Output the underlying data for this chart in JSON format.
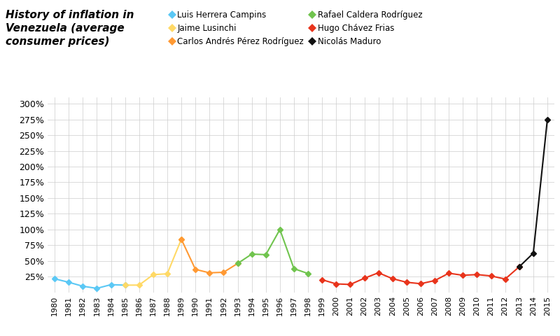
{
  "title": "History of inflation in\nVenezuela (average\nconsumer prices)",
  "series": [
    {
      "name": "Luis Herrera Campins",
      "color": "#5BC8F5",
      "marker": "D",
      "years": [
        1980,
        1981,
        1982,
        1983,
        1984,
        1985
      ],
      "values": [
        21.5,
        16.0,
        9.7,
        6.3,
        12.2,
        11.4
      ]
    },
    {
      "name": "Jaime Lusinchi",
      "color": "#FFD966",
      "marker": "D",
      "years": [
        1985,
        1986,
        1987,
        1988,
        1989
      ],
      "values": [
        11.4,
        11.5,
        28.1,
        29.5,
        84.5
      ]
    },
    {
      "name": "Carlos Andrés Pérez Rodríguez",
      "color": "#FF9933",
      "marker": "D",
      "years": [
        1989,
        1990,
        1991,
        1992,
        1993
      ],
      "values": [
        84.5,
        36.5,
        31.0,
        31.9,
        45.9
      ]
    },
    {
      "name": "Rafael Caldera Rodríguez",
      "color": "#70C44E",
      "marker": "D",
      "years": [
        1993,
        1994,
        1995,
        1996,
        1997,
        1998
      ],
      "values": [
        45.9,
        60.8,
        59.9,
        99.9,
        37.6,
        29.9
      ]
    },
    {
      "name": "Hugo Chávez Frias",
      "color": "#E8341C",
      "marker": "D",
      "years": [
        1999,
        2000,
        2001,
        2002,
        2003,
        2004,
        2005,
        2006,
        2007,
        2008,
        2009,
        2010,
        2011,
        2012,
        2013
      ],
      "values": [
        20.0,
        13.4,
        12.5,
        22.4,
        31.1,
        21.7,
        16.0,
        13.7,
        18.7,
        30.4,
        27.1,
        28.2,
        26.1,
        21.1,
        40.6
      ]
    },
    {
      "name": "Nicolás Maduro",
      "color": "#111111",
      "marker": "D",
      "years": [
        2013,
        2014,
        2015
      ],
      "values": [
        40.6,
        62.2,
        275.0
      ]
    }
  ],
  "xlim": [
    1979.5,
    2015.5
  ],
  "ylim": [
    0,
    310
  ],
  "yticks": [
    0,
    25,
    50,
    75,
    100,
    125,
    150,
    175,
    200,
    225,
    250,
    275,
    300
  ],
  "ytick_labels": [
    "",
    "25%",
    "50%",
    "75%",
    "100%",
    "125%",
    "150%",
    "175%",
    "200%",
    "225%",
    "250%",
    "275%",
    "300%"
  ],
  "xticks": [
    1980,
    1981,
    1982,
    1983,
    1984,
    1985,
    1986,
    1987,
    1988,
    1989,
    1990,
    1991,
    1992,
    1993,
    1994,
    1995,
    1996,
    1997,
    1998,
    1999,
    2000,
    2001,
    2002,
    2003,
    2004,
    2005,
    2006,
    2007,
    2008,
    2009,
    2010,
    2011,
    2012,
    2013,
    2014,
    2015
  ],
  "background_color": "#FFFFFF",
  "grid_color": "#CCCCCC",
  "legend_col1": [
    "Luis Herrera Campins",
    "Carlos Andrés Pérez Rodríguez",
    "Hugo Chávez Frias"
  ],
  "legend_col2": [
    "Jaime Lusinchi",
    "Rafael Caldera Rodríguez",
    "Nicolás Maduro"
  ]
}
